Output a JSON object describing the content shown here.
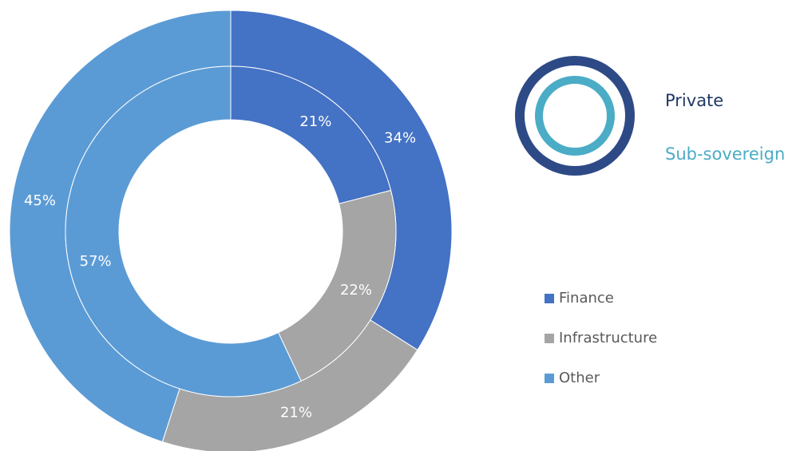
{
  "chart_data": {
    "type": "donut",
    "categories": [
      "Finance",
      "Infrastructure",
      "Other"
    ],
    "colors": [
      "#4472c4",
      "#a5a5a5",
      "#5b9bd5"
    ],
    "series": [
      {
        "name": "Private",
        "color": "#2e4a86",
        "values": [
          34,
          21,
          45
        ],
        "value_labels": [
          "34%",
          "21%",
          "45%"
        ]
      },
      {
        "name": "Sub-sovereign",
        "color": "#4bacc6",
        "values": [
          21,
          22,
          57
        ],
        "value_labels": [
          "21%",
          "22%",
          "57%"
        ]
      }
    ]
  }
}
